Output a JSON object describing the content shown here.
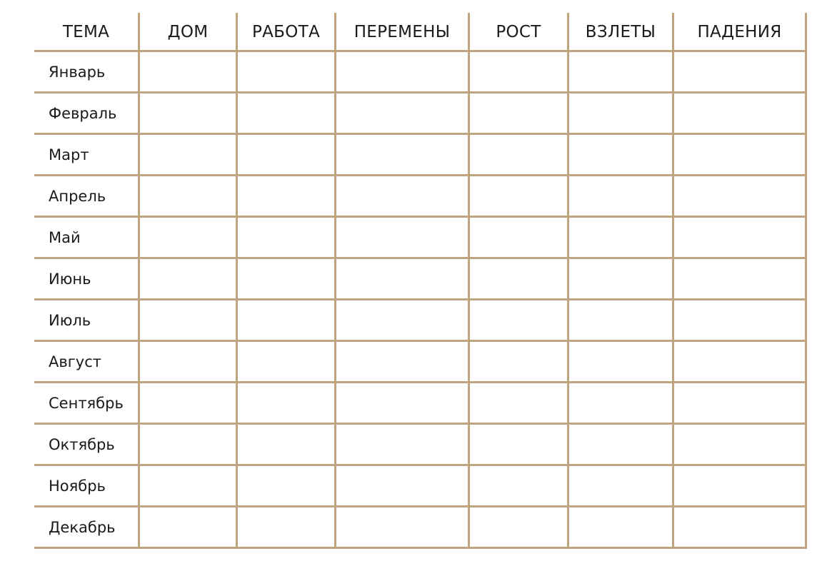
{
  "table": {
    "headers": [
      "ТЕМА",
      "ДОМ",
      "РАБОТА",
      "ПЕРЕМЕНЫ",
      "РОСТ",
      "ВЗЛЕТЫ",
      "ПАДЕНИЯ"
    ],
    "rows": [
      "Январь",
      "Февраль",
      "Март",
      "Апрель",
      "Май",
      "Июнь",
      "Июль",
      "Август",
      "Сентябрь",
      "Октябрь",
      "Ноябрь",
      "Декабрь"
    ],
    "line_color": "#bfa57f"
  }
}
